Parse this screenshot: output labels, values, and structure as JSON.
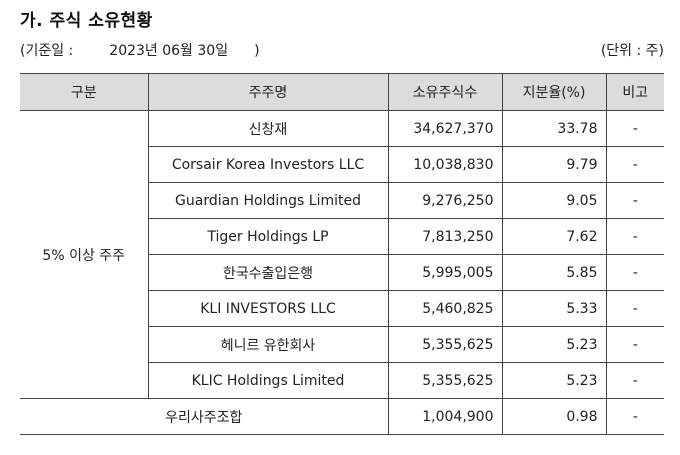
{
  "title": "가. 주식 소유현황",
  "basis": {
    "open": "(기준일 :",
    "date": "2023년 06월 30일",
    "close": ")"
  },
  "unit": "(단위 : 주)",
  "headers": [
    "구분",
    "주주명",
    "소유주식수",
    "지분율(%)",
    "비고"
  ],
  "group_label": "5% 이상 주주",
  "rows": [
    {
      "name": "신창재",
      "shares": "34,627,370",
      "ratio": "33.78",
      "note": "-"
    },
    {
      "name": "Corsair Korea Investors LLC",
      "shares": "10,038,830",
      "ratio": "9.79",
      "note": "-"
    },
    {
      "name": "Guardian Holdings Limited",
      "shares": "9,276,250",
      "ratio": "9.05",
      "note": "-"
    },
    {
      "name": "Tiger Holdings LP",
      "shares": "7,813,250",
      "ratio": "7.62",
      "note": "-"
    },
    {
      "name": "한국수출입은행",
      "shares": "5,995,005",
      "ratio": "5.85",
      "note": "-"
    },
    {
      "name": "KLI INVESTORS LLC",
      "shares": "5,460,825",
      "ratio": "5.33",
      "note": "-"
    },
    {
      "name": "헤니르 유한회사",
      "shares": "5,355,625",
      "ratio": "5.23",
      "note": "-"
    },
    {
      "name": "KLIC Holdings Limited",
      "shares": "5,355,625",
      "ratio": "5.23",
      "note": "-"
    }
  ],
  "esop": {
    "label": "우리사주조합",
    "shares": "1,004,900",
    "ratio": "0.98",
    "note": "-"
  }
}
